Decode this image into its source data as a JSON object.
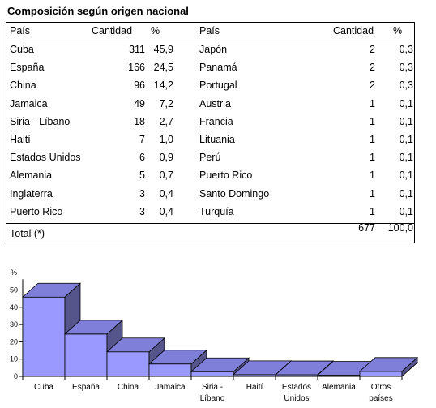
{
  "title": "Composición según origen nacional",
  "table": {
    "headers": {
      "country": "País",
      "count": "Cantidad",
      "pct": "%"
    },
    "left": [
      {
        "country": "Cuba",
        "count": "311",
        "pct": "45,9"
      },
      {
        "country": "España",
        "count": "166",
        "pct": "24,5"
      },
      {
        "country": "China",
        "count": "96",
        "pct": "14,2"
      },
      {
        "country": "Jamaica",
        "count": "49",
        "pct": "7,2"
      },
      {
        "country": "Siria - Líbano",
        "count": "18",
        "pct": "2,7"
      },
      {
        "country": "Haití",
        "count": "7",
        "pct": "1,0"
      },
      {
        "country": "Estados Unidos",
        "count": "6",
        "pct": "0,9"
      },
      {
        "country": "Alemania",
        "count": "5",
        "pct": "0,7"
      },
      {
        "country": "Inglaterra",
        "count": "3",
        "pct": "0,4"
      },
      {
        "country": "Puerto Rico",
        "count": "3",
        "pct": "0,4"
      }
    ],
    "right": [
      {
        "country": "Japón",
        "count": "2",
        "pct": "0,3"
      },
      {
        "country": "Panamá",
        "count": "2",
        "pct": "0,3"
      },
      {
        "country": "Portugal",
        "count": "2",
        "pct": "0,3"
      },
      {
        "country": "Austria",
        "count": "1",
        "pct": "0,1"
      },
      {
        "country": "Francia",
        "count": "1",
        "pct": "0,1"
      },
      {
        "country": "Lituania",
        "count": "1",
        "pct": "0,1"
      },
      {
        "country": "Perú",
        "count": "1",
        "pct": "0,1"
      },
      {
        "country": "Puerto Rico",
        "count": "1",
        "pct": "0,1"
      },
      {
        "country": "Santo Domingo",
        "count": "1",
        "pct": "0,1"
      },
      {
        "country": "Turquía",
        "count": "1",
        "pct": "0,1"
      }
    ],
    "total": {
      "label": "Total (*)",
      "count": "677",
      "pct": "100,0"
    }
  },
  "chart_data": {
    "type": "bar",
    "ylabel": "%",
    "ylim": [
      0,
      60
    ],
    "yticks": [
      0,
      10,
      20,
      30,
      40,
      50
    ],
    "categories": [
      [
        "Cuba"
      ],
      [
        "España"
      ],
      [
        "China"
      ],
      [
        "Jamaica"
      ],
      [
        "Siria -",
        "Líbano"
      ],
      [
        "Haití"
      ],
      [
        "Estados",
        "Unidos"
      ],
      [
        "Alemania"
      ],
      [
        "Otros",
        "países"
      ]
    ],
    "values": [
      45.9,
      24.5,
      14.2,
      7.2,
      2.7,
      1.0,
      0.9,
      0.7,
      2.9
    ],
    "colors": {
      "front": "#9999ff",
      "top": "#7f7fd9",
      "side": "#55558c",
      "floor": "#c0c0c0"
    }
  }
}
